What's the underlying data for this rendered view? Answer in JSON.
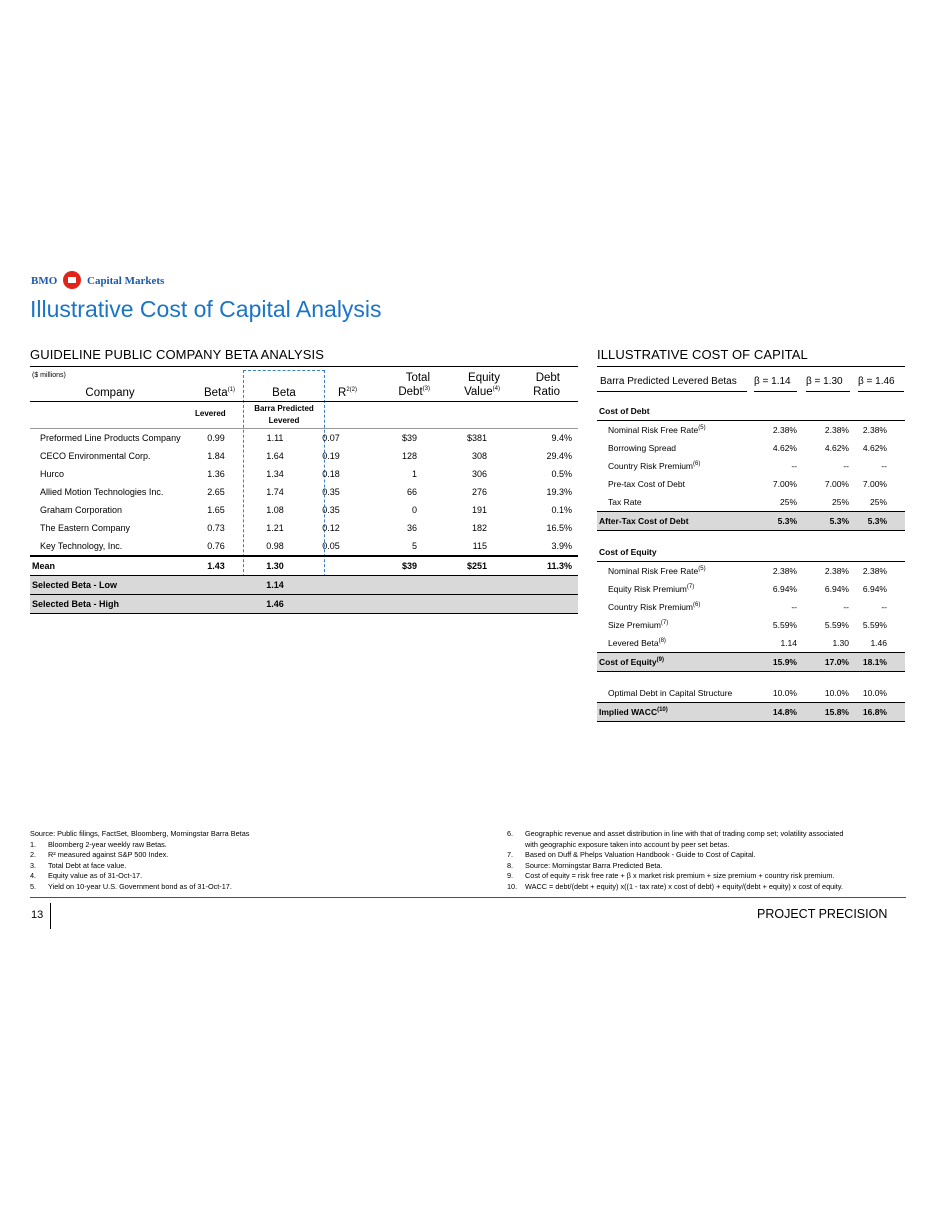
{
  "header": {
    "logo_left": "BMO",
    "logo_right": "Capital Markets",
    "title": "Illustrative Cost of Capital Analysis"
  },
  "left": {
    "section_title": "GUIDELINE PUBLIC COMPANY BETA ANALYSIS",
    "units": "($ millions)",
    "columns": {
      "company": "Company",
      "beta": "Beta",
      "beta_sup": "(1)",
      "beta2": "Beta",
      "r2": "R",
      "r2_sup": "2(2)",
      "total": "Total",
      "debt": "Debt",
      "debt_sup": "(3)",
      "equity": "Equity",
      "value": "Value",
      "value_sup": "(4)",
      "debt_r": "Debt",
      "ratio": "Ratio",
      "levered": "Levered",
      "barra_1": "Barra Predicted",
      "barra_2": "Levered"
    },
    "rows": [
      {
        "company": "Preformed Line Products Company",
        "beta": "0.99",
        "barra": "1.11",
        "r2": "0.07",
        "debt": "$39",
        "equity": "$381",
        "ratio": "9.4%"
      },
      {
        "company": "CECO Environmental Corp.",
        "beta": "1.84",
        "barra": "1.64",
        "r2": "0.19",
        "debt": "128",
        "equity": "308",
        "ratio": "29.4%"
      },
      {
        "company": "Hurco",
        "beta": "1.36",
        "barra": "1.34",
        "r2": "0.18",
        "debt": "1",
        "equity": "306",
        "ratio": "0.5%"
      },
      {
        "company": "Allied Motion Technologies Inc.",
        "beta": "2.65",
        "barra": "1.74",
        "r2": "0.35",
        "debt": "66",
        "equity": "276",
        "ratio": "19.3%"
      },
      {
        "company": "Graham Corporation",
        "beta": "1.65",
        "barra": "1.08",
        "r2": "0.35",
        "debt": "0",
        "equity": "191",
        "ratio": "0.1%"
      },
      {
        "company": "The Eastern Company",
        "beta": "0.73",
        "barra": "1.21",
        "r2": "0.12",
        "debt": "36",
        "equity": "182",
        "ratio": "16.5%"
      },
      {
        "company": "Key Technology, Inc.",
        "beta": "0.76",
        "barra": "0.98",
        "r2": "0.05",
        "debt": "5",
        "equity": "115",
        "ratio": "3.9%"
      }
    ],
    "mean": {
      "label": "Mean",
      "beta": "1.43",
      "barra": "1.30",
      "debt": "$39",
      "equity": "$251",
      "ratio": "11.3%"
    },
    "selected_low": {
      "label": "Selected Beta - Low",
      "value": "1.14"
    },
    "selected_high": {
      "label": "Selected Beta - High",
      "value": "1.46"
    }
  },
  "right": {
    "section_title": "ILLUSTRATIVE COST OF CAPITAL",
    "head_label": "Barra Predicted Levered Betas",
    "betas": [
      "β = 1.14",
      "β = 1.30",
      "β = 1.46"
    ],
    "cost_of_debt_title": "Cost of Debt",
    "debt_rows": [
      {
        "label": "Nominal Risk Free Rate",
        "sup": "(5)",
        "v": [
          "2.38%",
          "2.38%",
          "2.38%"
        ]
      },
      {
        "label": "Borrowing Spread",
        "sup": "",
        "v": [
          "4.62%",
          "4.62%",
          "4.62%"
        ]
      },
      {
        "label": "Country Risk Premium",
        "sup": "(6)",
        "v": [
          "--",
          "--",
          "--"
        ]
      },
      {
        "label": "Pre-tax Cost of Debt",
        "sup": "",
        "v": [
          "7.00%",
          "7.00%",
          "7.00%"
        ]
      },
      {
        "label": "Tax Rate",
        "sup": "",
        "v": [
          "25%",
          "25%",
          "25%"
        ]
      }
    ],
    "after_tax": {
      "label": "After-Tax Cost of Debt",
      "v": [
        "5.3%",
        "5.3%",
        "5.3%"
      ]
    },
    "cost_of_equity_title": "Cost of Equity",
    "equity_rows": [
      {
        "label": "Nominal Risk Free Rate",
        "sup": "(5)",
        "v": [
          "2.38%",
          "2.38%",
          "2.38%"
        ]
      },
      {
        "label": "Equity Risk Premium",
        "sup": "(7)",
        "v": [
          "6.94%",
          "6.94%",
          "6.94%"
        ]
      },
      {
        "label": "Country Risk Premium",
        "sup": "(6)",
        "v": [
          "--",
          "--",
          "--"
        ]
      },
      {
        "label": "Size Premium",
        "sup": "(7)",
        "v": [
          "5.59%",
          "5.59%",
          "5.59%"
        ]
      },
      {
        "label": "Levered Beta",
        "sup": "(8)",
        "v": [
          "1.14",
          "1.30",
          "1.46"
        ]
      }
    ],
    "cost_equity": {
      "label": "Cost of Equity",
      "sup": "(9)",
      "v": [
        "15.9%",
        "17.0%",
        "18.1%"
      ]
    },
    "optimal": {
      "label": "Optimal Debt in Capital Structure",
      "v": [
        "10.0%",
        "10.0%",
        "10.0%"
      ]
    },
    "wacc": {
      "label": "Implied WACC",
      "sup": "(10)",
      "v": [
        "14.8%",
        "15.8%",
        "16.8%"
      ]
    }
  },
  "footnotes": {
    "source": "Source: Public filings, FactSet, Bloomberg, Morningstar Barra Betas",
    "left": [
      {
        "n": "1.",
        "t": "Bloomberg 2-year weekly raw Betas."
      },
      {
        "n": "2.",
        "t": "R² measured against S&P 500 Index."
      },
      {
        "n": "3.",
        "t": "Total Debt at face value."
      },
      {
        "n": "4.",
        "t": "Equity value as of 31-Oct-17."
      },
      {
        "n": "5.",
        "t": "Yield on 10-year U.S. Government bond as of 31-Oct-17."
      }
    ],
    "right": [
      {
        "n": "6.",
        "t": "Geographic revenue and asset distribution in line with that of trading comp set; volatility associated"
      },
      {
        "n": "",
        "t": "with geographic exposure taken into account by peer set betas."
      },
      {
        "n": "7.",
        "t": "Based on Duff & Phelps Valuation Handbook - Guide to Cost of Capital."
      },
      {
        "n": "8.",
        "t": "Source: Morningstar Barra Predicted Beta."
      },
      {
        "n": "9.",
        "t": "Cost of equity = risk free rate + β x market risk premium + size premium + country risk premium."
      },
      {
        "n": "10.",
        "t": "WACC = debt/(debt + equity) x((1 - tax rate) x cost of debt) + equity/(debt + equity) x cost of equity."
      }
    ]
  },
  "footer": {
    "page": "13",
    "project": "PROJECT PRECISION"
  }
}
